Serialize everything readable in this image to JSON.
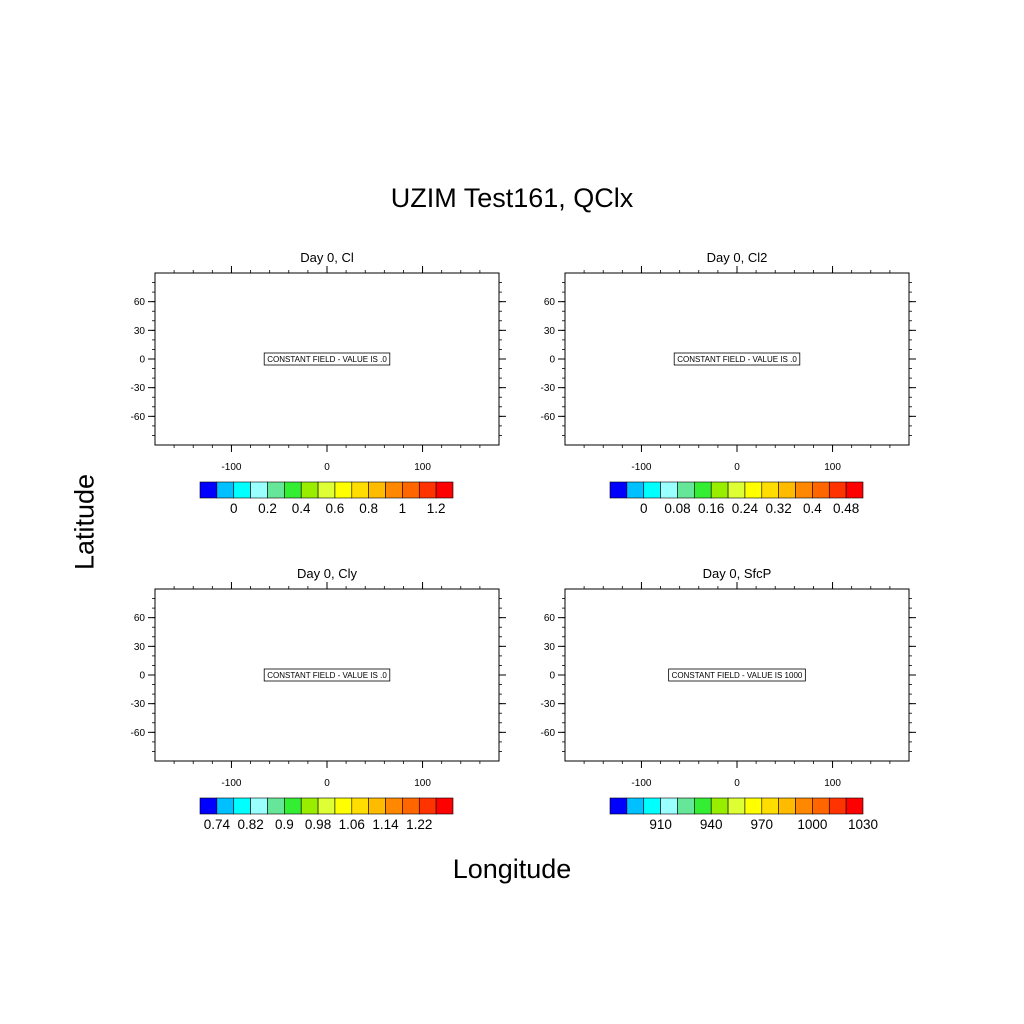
{
  "figure": {
    "title": "UZIM Test161, QClx",
    "ylabel": "Latitude",
    "xlabel": "Longitude"
  },
  "colors": {
    "colorbar": [
      "#0000ff",
      "#00c0ff",
      "#00ffff",
      "#99ffff",
      "#66e699",
      "#33ee33",
      "#99ee00",
      "#ddff33",
      "#ffff00",
      "#ffdd00",
      "#ffbb00",
      "#ff8800",
      "#ff6600",
      "#ff3300",
      "#ff0000"
    ]
  },
  "chart_data": [
    {
      "type": "heatmap",
      "title": "Day 0, Cl",
      "annotation": "CONSTANT FIELD - VALUE IS .0",
      "xlim": [
        -180,
        180
      ],
      "ylim": [
        -90,
        90
      ],
      "xticks": [
        -100,
        0,
        100
      ],
      "yticks": [
        60,
        30,
        0,
        -30,
        -60
      ],
      "grid": false,
      "colorbar_labels": [
        "0",
        "0.2",
        "0.4",
        "0.6",
        "0.8",
        "1",
        "1.2"
      ],
      "colorbar_label_boundaries": [
        2,
        4,
        6,
        8,
        10,
        12,
        14
      ]
    },
    {
      "type": "heatmap",
      "title": "Day 0, Cl2",
      "annotation": "CONSTANT FIELD - VALUE IS .0",
      "xlim": [
        -180,
        180
      ],
      "ylim": [
        -90,
        90
      ],
      "xticks": [
        -100,
        0,
        100
      ],
      "yticks": [
        60,
        30,
        0,
        -30,
        -60
      ],
      "grid": false,
      "colorbar_labels": [
        "0",
        "0.08",
        "0.16",
        "0.24",
        "0.32",
        "0.4",
        "0.48"
      ],
      "colorbar_label_boundaries": [
        2,
        4,
        6,
        8,
        10,
        12,
        14
      ]
    },
    {
      "type": "heatmap",
      "title": "Day 0, Cly",
      "annotation": "CONSTANT FIELD - VALUE IS .0",
      "xlim": [
        -180,
        180
      ],
      "ylim": [
        -90,
        90
      ],
      "xticks": [
        -100,
        0,
        100
      ],
      "yticks": [
        60,
        30,
        0,
        -30,
        -60
      ],
      "grid": false,
      "colorbar_labels": [
        "0.74",
        "0.82",
        "0.9",
        "0.98",
        "1.06",
        "1.14",
        "1.22"
      ],
      "colorbar_label_boundaries": [
        1,
        3,
        5,
        7,
        9,
        11,
        13
      ]
    },
    {
      "type": "heatmap",
      "title": "Day 0, SfcP",
      "annotation": "CONSTANT FIELD - VALUE IS 1000",
      "xlim": [
        -180,
        180
      ],
      "ylim": [
        -90,
        90
      ],
      "xticks": [
        -100,
        0,
        100
      ],
      "yticks": [
        60,
        30,
        0,
        -30,
        -60
      ],
      "grid": false,
      "colorbar_labels": [
        "910",
        "940",
        "970",
        "1000",
        "1030"
      ],
      "colorbar_label_boundaries": [
        3,
        6,
        9,
        12,
        15
      ]
    }
  ]
}
